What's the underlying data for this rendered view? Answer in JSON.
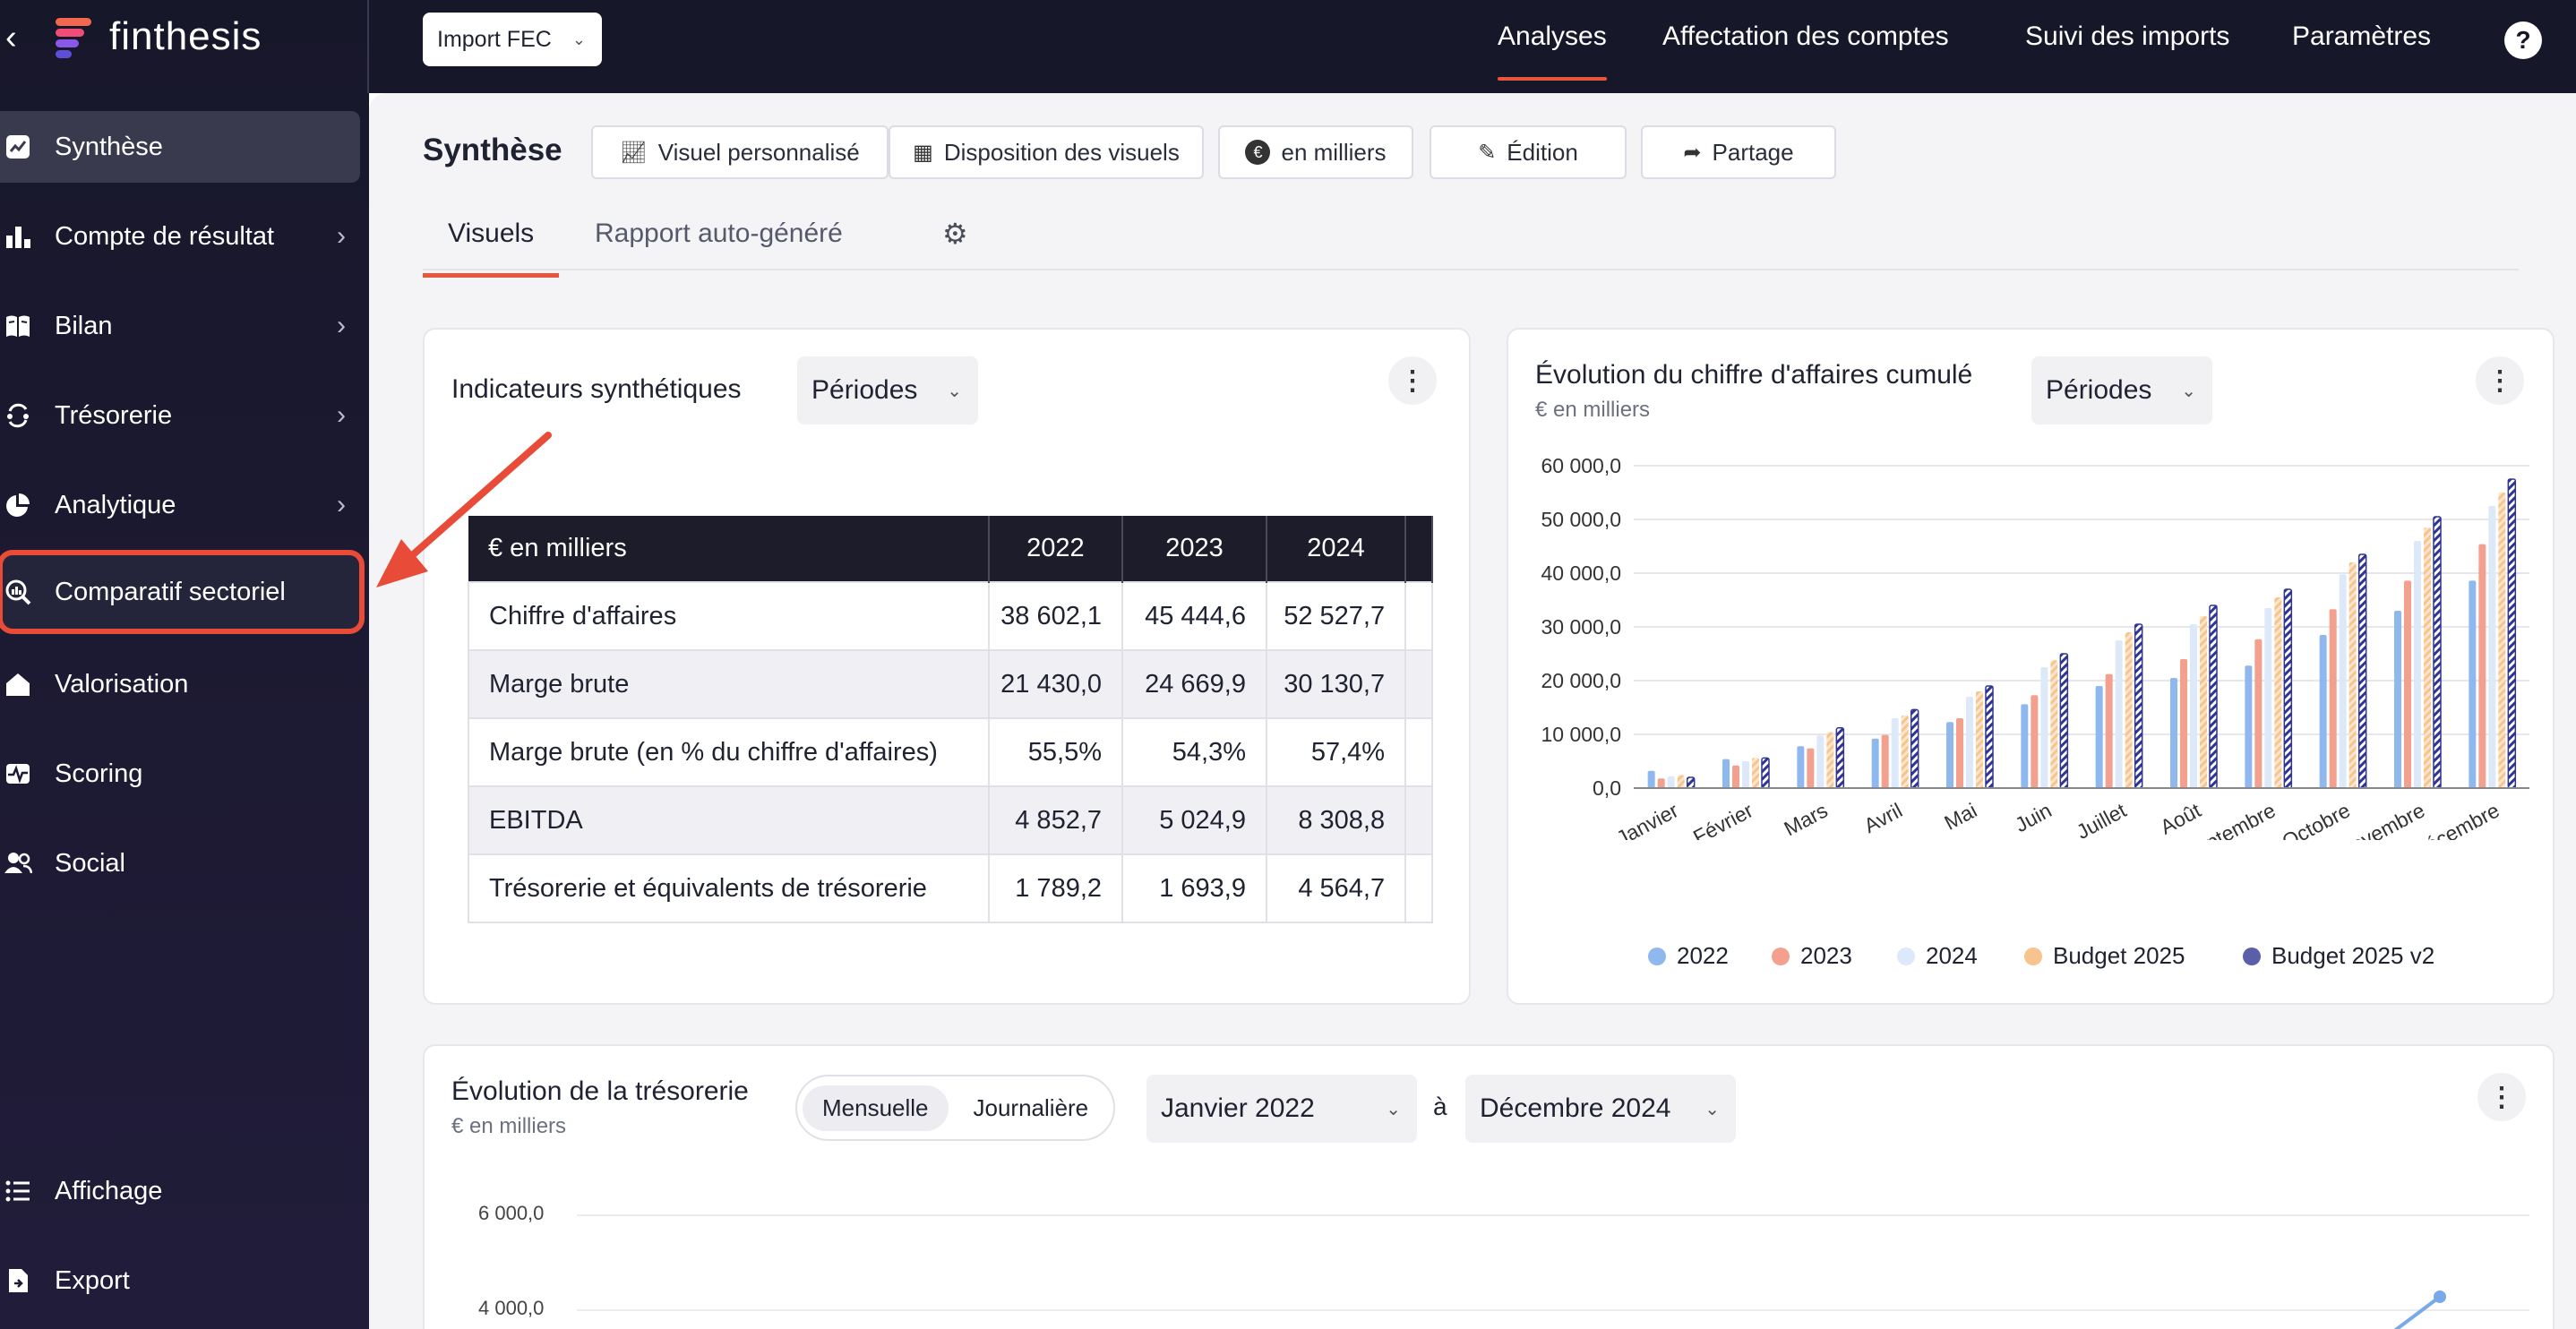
{
  "app": {
    "name": "finthesis",
    "back_icon": "chevron-left-icon"
  },
  "sidebar": {
    "items": [
      {
        "label": "Synthèse",
        "icon": "chart-line-icon",
        "active": true,
        "chevron": false
      },
      {
        "label": "Compte de résultat",
        "icon": "bar-chart-icon",
        "chevron": true
      },
      {
        "label": "Bilan",
        "icon": "book-icon",
        "chevron": true
      },
      {
        "label": "Trésorerie",
        "icon": "cash-flow-icon",
        "chevron": true
      },
      {
        "label": "Analytique",
        "icon": "pie-chart-icon",
        "chevron": true
      },
      {
        "label": "Comparatif sectoriel",
        "icon": "magnifier-chart-icon",
        "chevron": false,
        "highlighted": true
      },
      {
        "label": "Valorisation",
        "icon": "home-icon",
        "chevron": false
      },
      {
        "label": "Scoring",
        "icon": "pulse-icon",
        "chevron": false
      },
      {
        "label": "Social",
        "icon": "users-icon",
        "chevron": false
      }
    ],
    "bottom": [
      {
        "label": "Affichage",
        "icon": "list-icon"
      },
      {
        "label": "Export",
        "icon": "export-file-icon"
      }
    ]
  },
  "topbar": {
    "import_label": "Import FEC",
    "nav": [
      "Analyses",
      "Affectation des comptes",
      "Suivi des imports",
      "Paramètres"
    ],
    "active_nav": "Analyses",
    "help": "?"
  },
  "main": {
    "title": "Synthèse",
    "toolbar": [
      {
        "label": "Visuel personnalisé",
        "icon": "chart-line-icon"
      },
      {
        "label": "Disposition des visuels",
        "icon": "grid-icon"
      },
      {
        "label": "en milliers",
        "icon": "euro-icon"
      },
      {
        "label": "Édition",
        "icon": "pencil-icon"
      },
      {
        "label": "Partage",
        "icon": "share-icon"
      }
    ],
    "tabs": [
      "Visuels",
      "Rapport auto-généré"
    ],
    "active_tab": "Visuels"
  },
  "indicators": {
    "title": "Indicateurs synthétiques",
    "period_label": "Périodes",
    "header": [
      "€ en milliers",
      "2022",
      "2023",
      "2024"
    ],
    "rows": [
      [
        "Chiffre d'affaires",
        "38 602,1",
        "45 444,6",
        "52 527,7"
      ],
      [
        "Marge brute",
        "21 430,0",
        "24 669,9",
        "30 130,7"
      ],
      [
        "Marge brute (en % du chiffre d'affaires)",
        "55,5%",
        "54,3%",
        "57,4%"
      ],
      [
        "EBITDA",
        "4 852,7",
        "5 024,9",
        "8 308,8"
      ],
      [
        "Trésorerie et équivalents de trésorerie",
        "1 789,2",
        "1 693,9",
        "4 564,7"
      ]
    ]
  },
  "revenue_chart": {
    "title": "Évolution du chiffre d'affaires cumulé",
    "subtitle": "€ en milliers",
    "period_label": "Périodes"
  },
  "treasury": {
    "title": "Évolution de la trésorerie",
    "subtitle": "€ en milliers",
    "toggle": [
      "Mensuelle",
      "Journalière"
    ],
    "active_toggle": "Mensuelle",
    "from": "Janvier 2022",
    "sep": "à",
    "to": "Décembre 2024",
    "y_ticks": [
      "6 000,0",
      "4 000,0"
    ]
  },
  "colors": {
    "accent": "#e8563d",
    "s2022": "#8fb8ee",
    "s2023": "#f3a08f",
    "s2024": "#dde8f8",
    "sB25": "#f7c48e",
    "sB25v2": "#5a5fa8"
  },
  "chart_data": {
    "type": "bar",
    "title": "Évolution du chiffre d'affaires cumulé",
    "ylabel": "€ en milliers",
    "categories": [
      "Janvier",
      "Février",
      "Mars",
      "Avril",
      "Mai",
      "Juin",
      "Juillet",
      "Août",
      "Septembre",
      "Octobre",
      "Novembre",
      "Décembre"
    ],
    "ylim": [
      0,
      60000
    ],
    "y_ticks": [
      "0,0",
      "10 000,0",
      "20 000,0",
      "30 000,0",
      "40 000,0",
      "50 000,0",
      "60 000,0"
    ],
    "legend_position": "bottom",
    "series": [
      {
        "name": "2022",
        "values": [
          3200,
          5400,
          7800,
          9200,
          12300,
          15600,
          19000,
          20500,
          22800,
          28500,
          33000,
          38600
        ]
      },
      {
        "name": "2023",
        "values": [
          1800,
          4200,
          7400,
          9900,
          13000,
          17300,
          21200,
          24000,
          27700,
          33300,
          38600,
          45400
        ]
      },
      {
        "name": "2024",
        "values": [
          2200,
          5000,
          9800,
          13000,
          17000,
          22500,
          27500,
          30500,
          33500,
          39800,
          46000,
          52500
        ]
      },
      {
        "name": "Budget 2025",
        "values": [
          2400,
          5600,
          10400,
          13500,
          18000,
          23800,
          29000,
          32000,
          35500,
          42000,
          48500,
          55000
        ]
      },
      {
        "name": "Budget 2025 v2",
        "values": [
          2000,
          5600,
          11200,
          14600,
          19000,
          25000,
          30500,
          34000,
          37000,
          43500,
          50500,
          57500
        ]
      }
    ]
  }
}
